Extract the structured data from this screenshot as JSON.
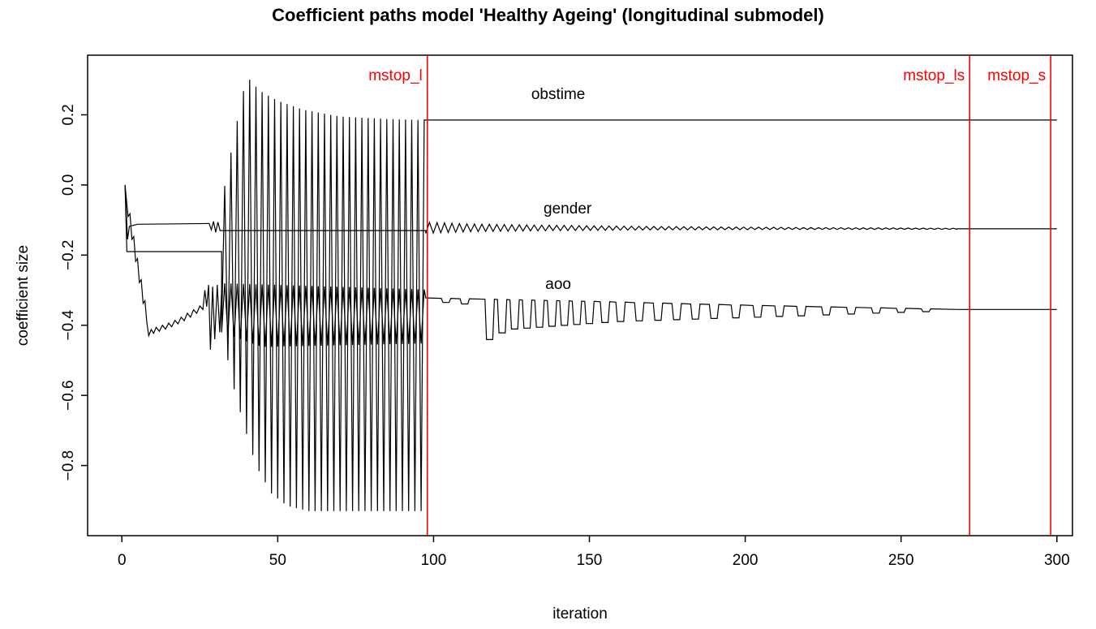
{
  "chart_data": {
    "type": "line",
    "title": "Coefficient paths model 'Healthy Ageing' (longitudinal submodel)",
    "xlabel": "iteration",
    "ylabel": "coefficient size",
    "xlim": [
      -11,
      305
    ],
    "ylim": [
      -1.0,
      0.37
    ],
    "xticks": [
      0,
      50,
      100,
      150,
      200,
      250,
      300
    ],
    "xtick_labels": [
      "0",
      "50",
      "100",
      "150",
      "200",
      "250",
      "300"
    ],
    "yticks": [
      0.2,
      0.0,
      -0.2,
      -0.4,
      -0.6,
      -0.8
    ],
    "ytick_labels": [
      "0.2",
      "0.0",
      "−0.2",
      "−0.4",
      "−0.6",
      "−0.8"
    ],
    "grid": false,
    "legend": "none",
    "background": "#ffffff",
    "axis_color": "#000000",
    "line_color": "#000000",
    "vline_color": "#ff0000",
    "vlines": [
      {
        "x": 98,
        "label": "mstop_l",
        "color": "#ff0000"
      },
      {
        "x": 272,
        "label": "mstop_ls",
        "color": "#ff0000"
      },
      {
        "x": 298,
        "label": "mstop_s",
        "color": "#ff0000"
      }
    ],
    "series_labels": [
      {
        "text": "obstime",
        "x": 140,
        "y": 0.245
      },
      {
        "text": "gender",
        "x": 143,
        "y": -0.081
      },
      {
        "text": "aoo",
        "x": 140,
        "y": -0.296
      }
    ],
    "series": [
      {
        "name": "obstime",
        "settled_value": 0.185,
        "segments": [
          {
            "type": "points",
            "pts": [
              [
                1,
                0
              ],
              [
                1.6,
                -0.19
              ],
              [
                32,
                -0.19
              ]
            ]
          },
          {
            "type": "sawtooth",
            "from": 32,
            "to": 97.5,
            "period": 2,
            "phase": 0,
            "top_env": [
              [
                32,
                -0.05
              ],
              [
                36,
                0.14
              ],
              [
                40,
                0.31
              ],
              [
                44,
                0.27
              ],
              [
                50,
                0.24
              ],
              [
                58,
                0.215
              ],
              [
                70,
                0.195
              ],
              [
                85,
                0.188
              ],
              [
                97.5,
                0.185
              ]
            ],
            "bot_env": [
              [
                32,
                -0.4
              ],
              [
                35,
                -0.55
              ],
              [
                39,
                -0.68
              ],
              [
                43,
                -0.8
              ],
              [
                48,
                -0.88
              ],
              [
                53,
                -0.915
              ],
              [
                60,
                -0.93
              ],
              [
                97.5,
                -0.93
              ]
            ]
          },
          {
            "type": "points",
            "pts": [
              [
                97.5,
                0.185
              ],
              [
                300,
                0.185
              ]
            ]
          }
        ]
      },
      {
        "name": "gender",
        "settled_value": -0.125,
        "segments": [
          {
            "type": "points",
            "pts": [
              [
                1,
                0
              ],
              [
                1.8,
                -0.155
              ],
              [
                2.4,
                -0.118
              ],
              [
                5,
                -0.112
              ],
              [
                28,
                -0.11
              ],
              [
                28.7,
                -0.128
              ],
              [
                29.4,
                -0.104
              ],
              [
                30.1,
                -0.135
              ],
              [
                30.8,
                -0.106
              ],
              [
                31.5,
                -0.13
              ],
              [
                33,
                -0.13
              ],
              [
                97.5,
                -0.13
              ]
            ]
          },
          {
            "type": "damped_osc",
            "from": 97.5,
            "to": 268,
            "period": 2.4,
            "base_env": [
              [
                97.5,
                -0.122
              ],
              [
                268,
                -0.125
              ]
            ],
            "amp_env": [
              [
                97.5,
                0.016
              ],
              [
                112,
                0.011
              ],
              [
                135,
                0.008
              ],
              [
                170,
                0.005
              ],
              [
                215,
                0.003
              ],
              [
                268,
                0.0015
              ]
            ]
          },
          {
            "type": "points",
            "pts": [
              [
                268,
                -0.125
              ],
              [
                300,
                -0.125
              ]
            ]
          }
        ]
      },
      {
        "name": "aoo",
        "settled_value": -0.355,
        "segments": [
          {
            "type": "points",
            "pts": [
              [
                1,
                0
              ],
              [
                2,
                -0.09
              ],
              [
                2.6,
                -0.082
              ],
              [
                3.2,
                -0.155
              ],
              [
                3.8,
                -0.147
              ],
              [
                4.4,
                -0.218
              ],
              [
                5,
                -0.21
              ],
              [
                5.6,
                -0.278
              ],
              [
                6.2,
                -0.27
              ],
              [
                6.8,
                -0.338
              ],
              [
                7.4,
                -0.33
              ],
              [
                8,
                -0.392
              ],
              [
                8.6,
                -0.43
              ],
              [
                9.4,
                -0.412
              ],
              [
                10.2,
                -0.423
              ],
              [
                11,
                -0.406
              ],
              [
                12,
                -0.417
              ],
              [
                13,
                -0.4
              ],
              [
                14,
                -0.411
              ],
              [
                15,
                -0.394
              ],
              [
                16,
                -0.404
              ],
              [
                17,
                -0.386
              ],
              [
                18,
                -0.396
              ],
              [
                19,
                -0.377
              ],
              [
                20,
                -0.387
              ],
              [
                21,
                -0.366
              ],
              [
                22,
                -0.377
              ],
              [
                23,
                -0.356
              ],
              [
                24,
                -0.366
              ],
              [
                25,
                -0.345
              ],
              [
                26,
                -0.355
              ],
              [
                26.6,
                -0.3
              ],
              [
                27.2,
                -0.347
              ],
              [
                27.8,
                -0.285
              ],
              [
                28.4,
                -0.47
              ],
              [
                29.1,
                -0.29
              ],
              [
                29.8,
                -0.44
              ],
              [
                30.6,
                -0.285
              ],
              [
                31.4,
                -0.42
              ],
              [
                32,
                -0.3
              ]
            ]
          },
          {
            "type": "sawtooth",
            "from": 32,
            "to": 97.5,
            "period": 2,
            "phase": 0,
            "top_env": [
              [
                32,
                -0.28
              ],
              [
                97.5,
                -0.298
              ]
            ],
            "bot_env": [
              [
                32,
                -0.42
              ],
              [
                45,
                -0.462
              ],
              [
                97.5,
                -0.452
              ]
            ]
          },
          {
            "type": "teeth",
            "from": 97.5,
            "to": 268,
            "base_env": [
              [
                97.5,
                -0.322
              ],
              [
                150,
                -0.332
              ],
              [
                200,
                -0.343
              ],
              [
                268,
                -0.355
              ]
            ],
            "depth_env": [
              [
                104,
                0.012
              ],
              [
                112,
                0.016
              ],
              [
                118,
                0.115
              ],
              [
                124,
                0.085
              ],
              [
                136,
                0.075
              ],
              [
                148,
                0.065
              ],
              [
                160,
                0.055
              ],
              [
                180,
                0.045
              ],
              [
                200,
                0.035
              ],
              [
                220,
                0.026
              ],
              [
                240,
                0.016
              ],
              [
                258,
                0.008
              ]
            ],
            "teeth": [
              104,
              110,
              118,
              122,
              126,
              130,
              134,
              138,
              142,
              146,
              150,
              155,
              160,
              166,
              172,
              178,
              184,
              190,
              197,
              204,
              211,
              218,
              226,
              234,
              242,
              250,
              258
            ]
          },
          {
            "type": "points",
            "pts": [
              [
                268,
                -0.355
              ],
              [
                300,
                -0.355
              ]
            ]
          }
        ]
      }
    ]
  }
}
